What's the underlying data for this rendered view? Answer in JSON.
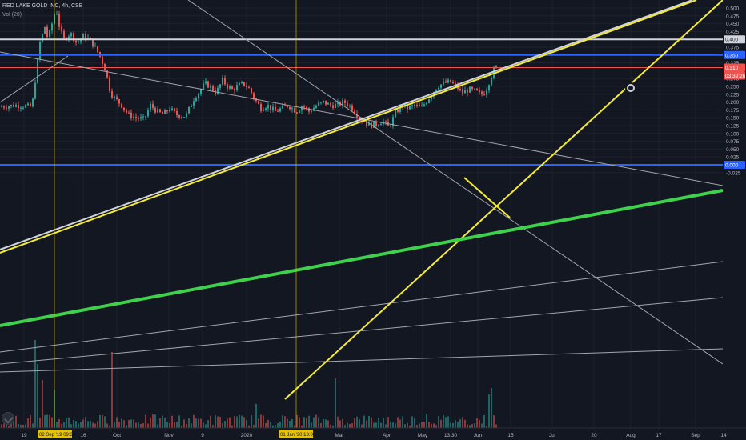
{
  "header": {
    "symbol": "RED LAKE GOLD INC, 4h, CSE",
    "volume_indicator": "Vol (20)"
  },
  "chart_data": {
    "type": "candlestick",
    "title": "RED LAKE GOLD INC, 4h, CSE",
    "y_axis": {
      "ticks": [
        "0.500",
        "0.475",
        "0.450",
        "0.425",
        "0.375",
        "0.325",
        "0.275",
        "0.250",
        "0.225",
        "0.200",
        "0.175",
        "0.150",
        "0.125",
        "0.100",
        "0.075",
        "0.050",
        "0.025",
        "-0.025"
      ],
      "ylim": [
        -0.03,
        0.51
      ]
    },
    "x_axis": {
      "ticks": [
        "19",
        "16",
        "Oct",
        "Nov",
        "9",
        "2020",
        "Mar",
        "Apr",
        "May",
        "13:30",
        "Jun",
        "15",
        "Jul",
        "20",
        "Aug",
        "17",
        "Sep",
        "14"
      ]
    },
    "date_markers": [
      {
        "label": "02 Sep '19  09:30",
        "color": "#e6c200"
      },
      {
        "label": "01 Jan '20  13:00",
        "color": "#e6c200"
      }
    ],
    "price_labels": [
      {
        "label": "0.400",
        "bg": "#d1d4dc",
        "fg": "#131722"
      },
      {
        "label": "0.350",
        "bg": "#2962ff",
        "fg": "#ffffff"
      },
      {
        "label": "0.310",
        "bg": "#ef5350",
        "fg": "#ffffff"
      },
      {
        "label": "03:39:26",
        "bg": "#ef5350",
        "fg": "#ffffff"
      },
      {
        "label": "0.000",
        "bg": "#2962ff",
        "fg": "#ffffff"
      }
    ],
    "last_price": 0.31,
    "horizontal_levels": [
      {
        "value": 0.4,
        "color": "#d1d4dc"
      },
      {
        "value": 0.35,
        "color": "#2962ff"
      },
      {
        "value": 0.31,
        "color": "#ef5350"
      },
      {
        "value": 0.0,
        "color": "#2962ff"
      }
    ],
    "colors": {
      "up": "#26a69a",
      "down": "#ef5350",
      "trend_yellow": "#f5eb32",
      "trend_green": "#3fd14b",
      "trend_gray": "#a3a6af"
    }
  }
}
